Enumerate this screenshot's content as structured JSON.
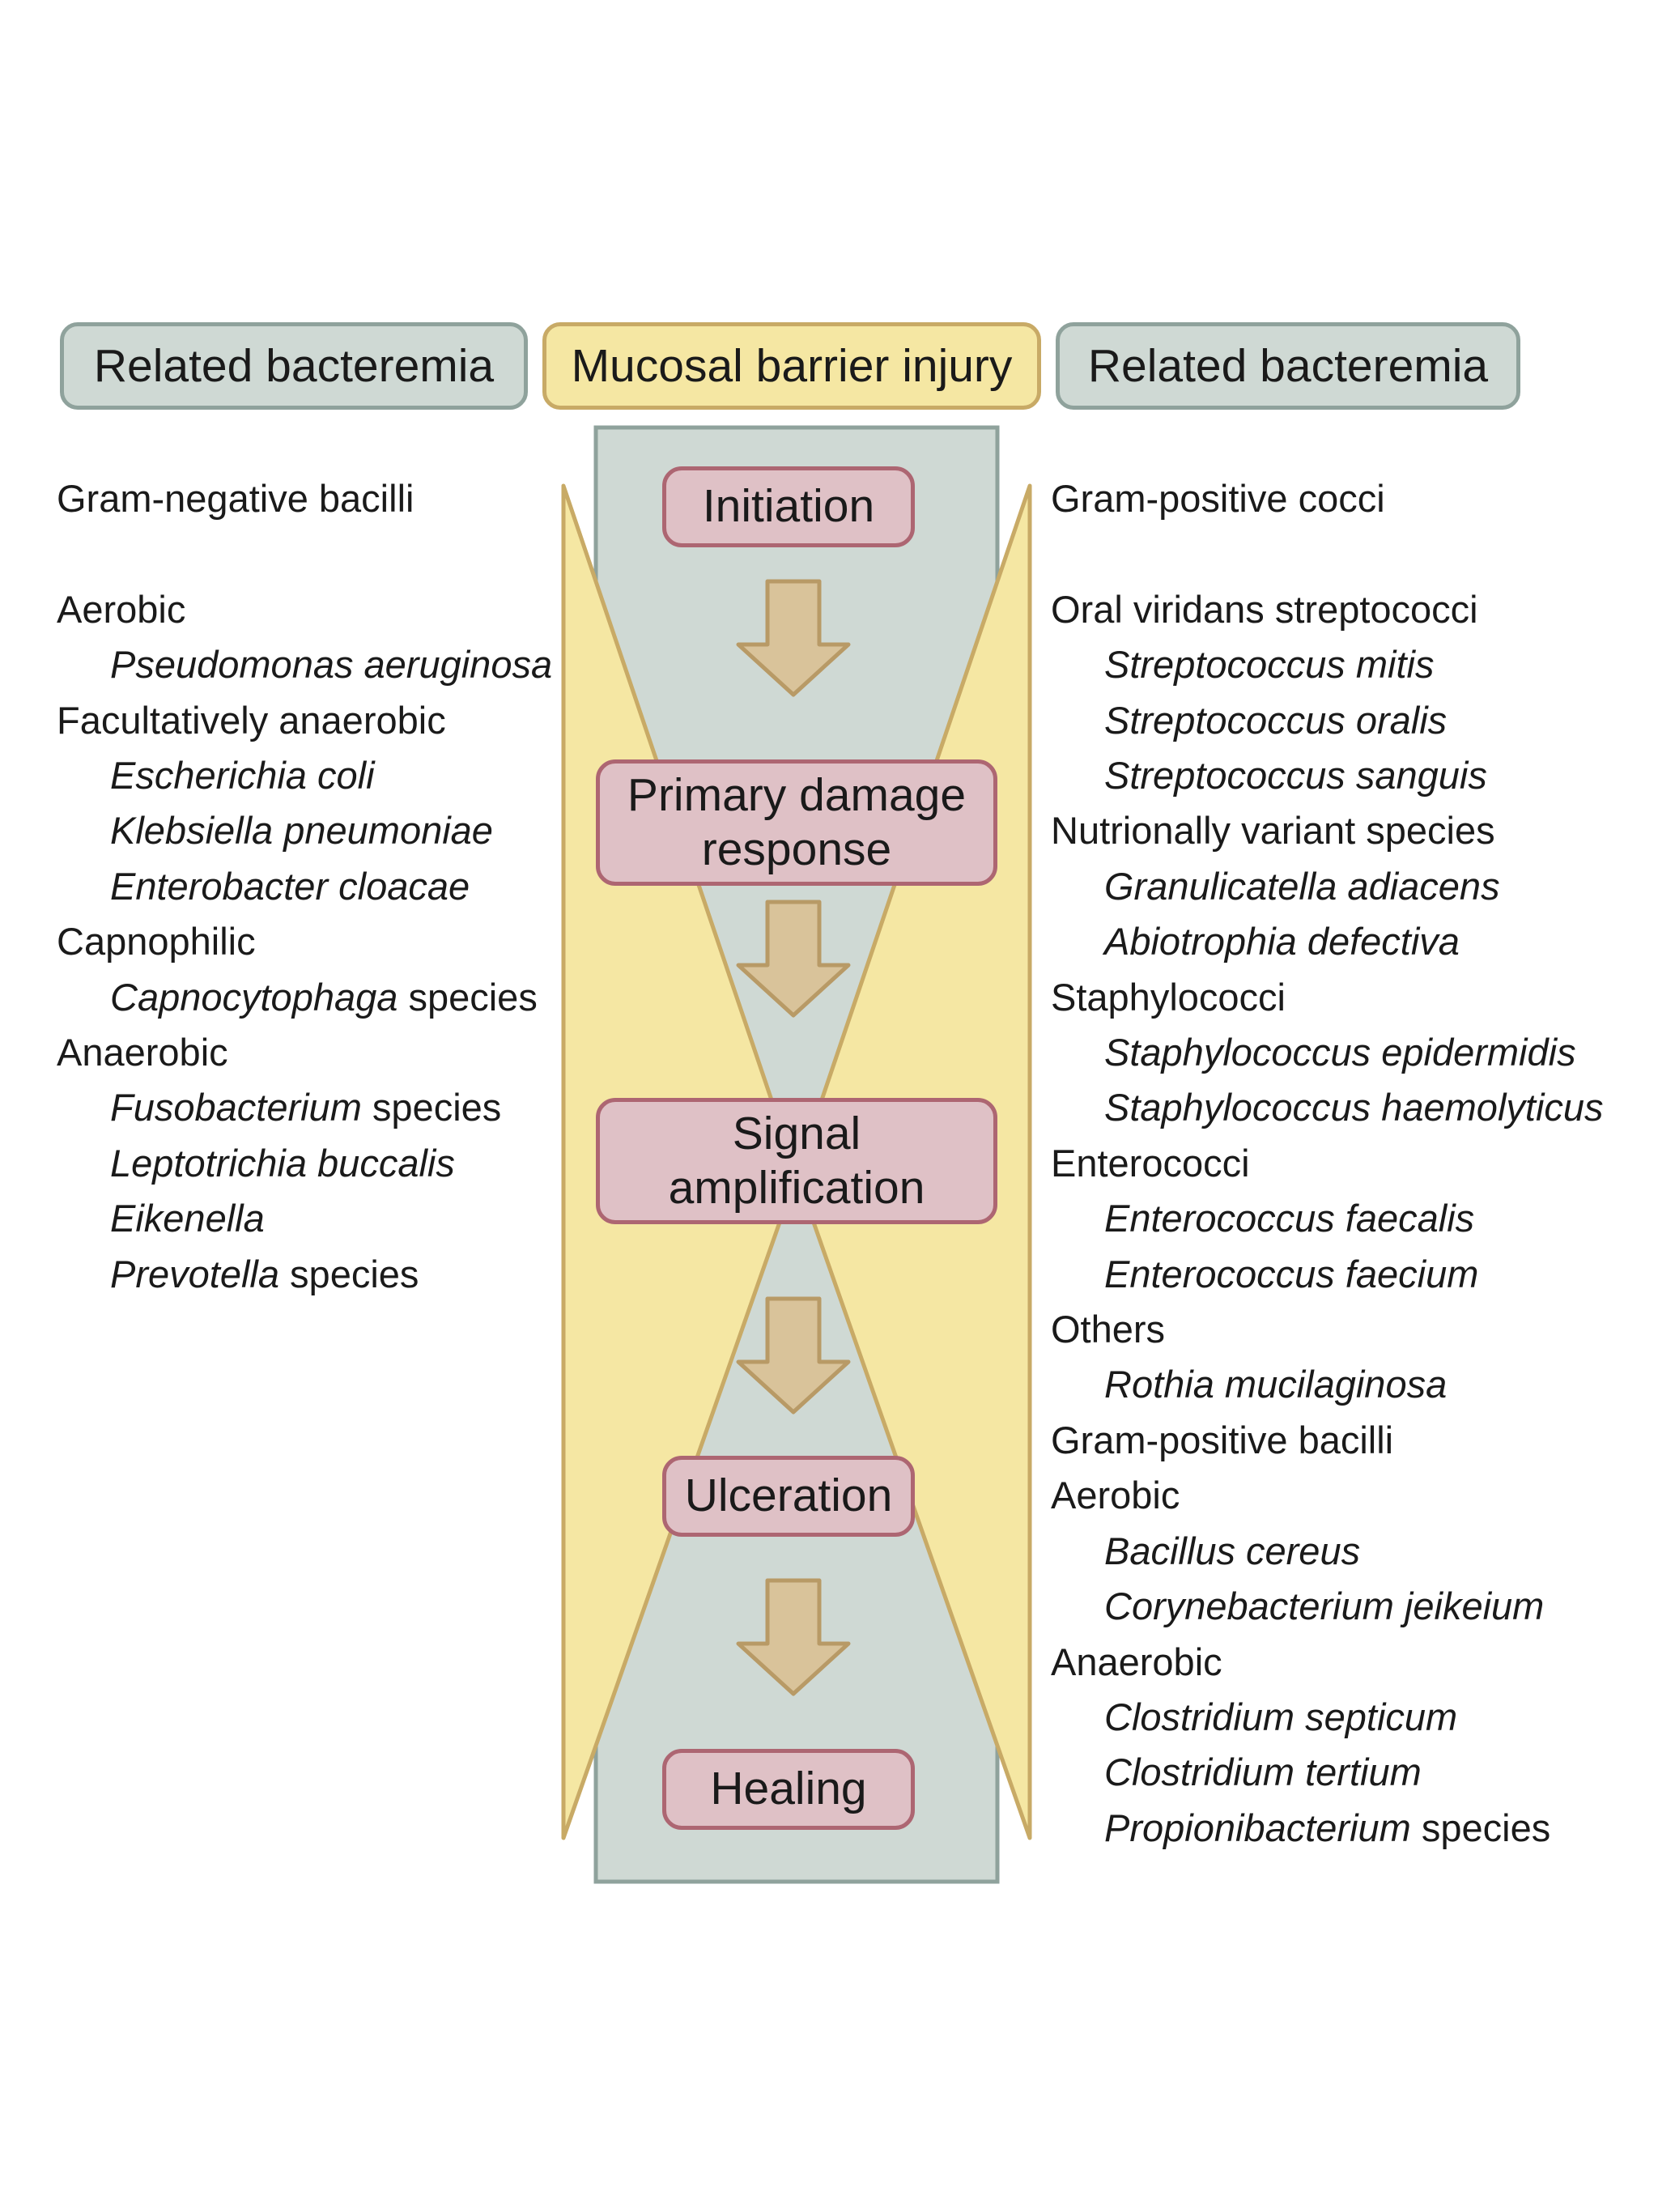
{
  "headers": {
    "left": "Related bacteremia",
    "center": "Mucosal barrier injury",
    "right": "Related bacteremia"
  },
  "stages": [
    {
      "lines": [
        "Initiation"
      ]
    },
    {
      "lines": [
        "Primary damage",
        "response"
      ]
    },
    {
      "lines": [
        "Signal",
        "amplification"
      ]
    },
    {
      "lines": [
        "Ulceration"
      ]
    },
    {
      "lines": [
        "Healing"
      ]
    }
  ],
  "colors": {
    "column_fill": "#cfd9d4",
    "column_border": "#8fa29c",
    "wedge_fill": "#f5e7a3",
    "wedge_border": "#c8aa66",
    "stage_fill": "#dfc1c6",
    "stage_border": "#ad6672",
    "arrow_fill": "#d9c39a",
    "arrow_border": "#b89a66"
  },
  "left_list": [
    {
      "type": "category",
      "text": "Gram-negative bacilli"
    },
    {
      "type": "gap"
    },
    {
      "type": "category",
      "text": "Aerobic"
    },
    {
      "type": "species",
      "italic": "Pseudomonas aeruginosa",
      "plain": ""
    },
    {
      "type": "category",
      "text": "Facultatively anaerobic"
    },
    {
      "type": "species",
      "italic": "Escherichia coli",
      "plain": ""
    },
    {
      "type": "species",
      "italic": "Klebsiella pneumoniae",
      "plain": ""
    },
    {
      "type": "species",
      "italic": "Enterobacter cloacae",
      "plain": ""
    },
    {
      "type": "category",
      "text": "Capnophilic"
    },
    {
      "type": "species",
      "italic": "Capnocytophaga",
      "plain": " species"
    },
    {
      "type": "category",
      "text": "Anaerobic"
    },
    {
      "type": "species",
      "italic": "Fusobacterium",
      "plain": " species"
    },
    {
      "type": "species",
      "italic": "Leptotrichia buccalis",
      "plain": ""
    },
    {
      "type": "species",
      "italic": "Eikenella",
      "plain": ""
    },
    {
      "type": "species",
      "italic": "Prevotella",
      "plain": " species"
    }
  ],
  "right_list": [
    {
      "type": "category",
      "text": "Gram-positive cocci"
    },
    {
      "type": "gap"
    },
    {
      "type": "category",
      "text": "Oral viridans streptococci"
    },
    {
      "type": "species",
      "italic": "Streptococcus mitis",
      "plain": ""
    },
    {
      "type": "species",
      "italic": "Streptococcus oralis",
      "plain": ""
    },
    {
      "type": "species",
      "italic": "Streptococcus sanguis",
      "plain": ""
    },
    {
      "type": "category",
      "text": "Nutrionally variant species"
    },
    {
      "type": "species",
      "italic": "Granulicatella adiacens",
      "plain": ""
    },
    {
      "type": "species",
      "italic": "Abiotrophia defectiva",
      "plain": ""
    },
    {
      "type": "category",
      "text": "Staphylococci"
    },
    {
      "type": "species",
      "italic": "Staphylococcus epidermidis",
      "plain": ""
    },
    {
      "type": "species",
      "italic": "Staphylococcus haemolyticus",
      "plain": ""
    },
    {
      "type": "category",
      "text": "Enterococci"
    },
    {
      "type": "species",
      "italic": "Enterococcus faecalis",
      "plain": ""
    },
    {
      "type": "species",
      "italic": "Enterococcus faecium",
      "plain": ""
    },
    {
      "type": "category",
      "text": "Others"
    },
    {
      "type": "species",
      "italic": "Rothia mucilaginosa",
      "plain": ""
    },
    {
      "type": "category",
      "text": "Gram-positive bacilli"
    },
    {
      "type": "category",
      "text": "Aerobic"
    },
    {
      "type": "species",
      "italic": "Bacillus cereus",
      "plain": ""
    },
    {
      "type": "species",
      "italic": "Corynebacterium jeikeium",
      "plain": ""
    },
    {
      "type": "category",
      "text": "Anaerobic"
    },
    {
      "type": "species",
      "italic": "Clostridium septicum",
      "plain": ""
    },
    {
      "type": "species",
      "italic": "Clostridium tertium",
      "plain": ""
    },
    {
      "type": "species",
      "italic": "Propionibacterium",
      "plain": " species"
    }
  ]
}
